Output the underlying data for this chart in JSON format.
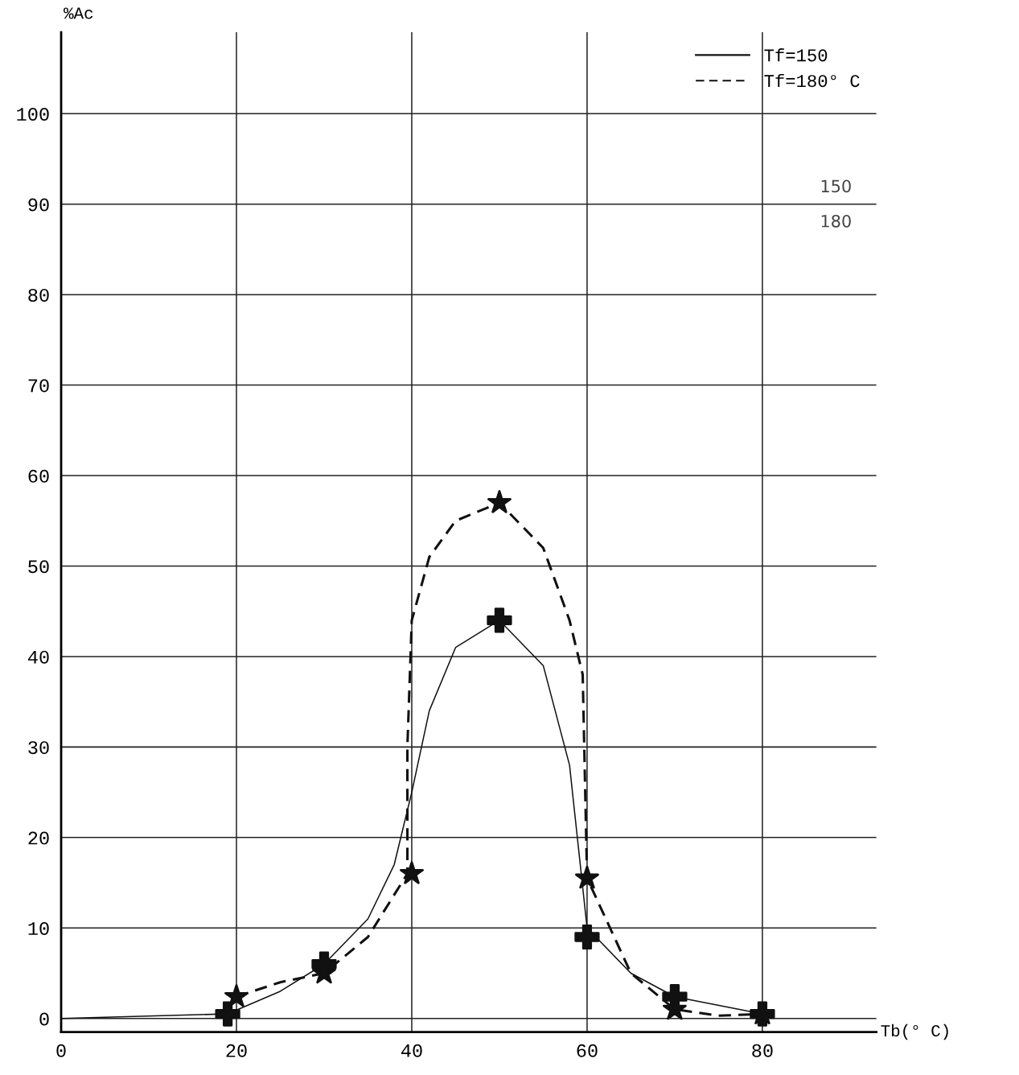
{
  "chart_data": {
    "type": "line",
    "xlabel": "Tb(° C)",
    "ylabel": "%Ac",
    "xlim": [
      0,
      93
    ],
    "ylim": [
      -1.5,
      109
    ],
    "xticks": [
      0,
      20,
      40,
      60,
      80
    ],
    "yticks": [
      0,
      10,
      20,
      30,
      40,
      50,
      60,
      70,
      80,
      90,
      100
    ],
    "grid": true,
    "legend": "top right",
    "series": [
      {
        "name": "Tf=150",
        "color": "#111111",
        "line_style": "solid",
        "marker": "none",
        "x": [
          0,
          19,
          25,
          30,
          35,
          38,
          40,
          42,
          45,
          50,
          55,
          58,
          60,
          65,
          70,
          80
        ],
        "values": [
          0,
          0.5,
          3,
          6,
          11,
          17,
          25,
          34,
          41,
          44,
          39,
          28,
          10,
          5,
          2.4,
          0.5
        ]
      },
      {
        "name": "Tf=180° C",
        "color": "#111111",
        "line_style": "dashed",
        "marker": "none",
        "x": [
          20,
          25,
          30,
          35,
          39.5,
          39.5,
          40,
          42,
          45,
          50,
          55,
          58,
          59.5,
          60,
          65,
          70,
          75,
          80
        ],
        "values": [
          2.4,
          4,
          5,
          9,
          16,
          30,
          44,
          51,
          55,
          57,
          52,
          44,
          38,
          15.5,
          5,
          1,
          0.3,
          0.5
        ]
      },
      {
        "type": "scatter",
        "color": "#111111",
        "marker": "cross",
        "x": [
          19,
          30,
          50,
          60,
          70,
          80
        ],
        "values": [
          0.5,
          6,
          44,
          9,
          2.4,
          0.5
        ]
      },
      {
        "type": "scatter",
        "color": "#111111",
        "marker": "star",
        "x": [
          20,
          30,
          40,
          50,
          60,
          70,
          80
        ],
        "values": [
          2.4,
          5,
          16,
          57,
          15.5,
          1,
          0.5
        ]
      }
    ],
    "annotations": [
      "150",
      "180"
    ]
  }
}
